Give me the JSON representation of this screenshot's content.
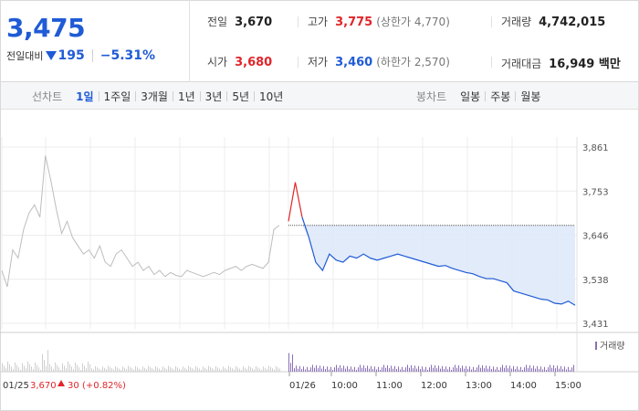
{
  "summary": {
    "price": "3,475",
    "change_label": "전일대비",
    "change_value": "195",
    "change_percent": "−5.31%",
    "direction_color": "#1f5bd6",
    "stats": {
      "prev_close": {
        "label": "전일",
        "value": "3,670"
      },
      "high": {
        "label": "고가",
        "value": "3,775",
        "note": "(상한가 4,770)"
      },
      "volume": {
        "label": "거래량",
        "value": "4,742,015"
      },
      "open": {
        "label": "시가",
        "value": "3,680"
      },
      "low": {
        "label": "저가",
        "value": "3,460",
        "note": "(하한가 2,570)"
      },
      "trade_value": {
        "label": "거래대금",
        "value": "16,949 백만"
      }
    }
  },
  "toolbar": {
    "line_title": "선차트",
    "line_periods": [
      "1일",
      "1주일",
      "3개월",
      "1년",
      "3년",
      "5년",
      "10년"
    ],
    "active_period": "1일",
    "candle_title": "봉차트",
    "candle_periods": [
      "일봉",
      "주봉",
      "월봉"
    ]
  },
  "colors": {
    "up": "#e0262a",
    "down": "#1f5bd6",
    "grey": "#bdbdbd",
    "fill": "#dfe9f8",
    "volume": "#8a6fb6"
  },
  "chart_data": {
    "type": "line",
    "y_ticks": [
      "3,861",
      "3,753",
      "3,646",
      "3,538",
      "3,431"
    ],
    "ylim": [
      3431,
      3861
    ],
    "prev_close": 3670,
    "x_ticks": [
      "01/25",
      "01/26",
      "10:00",
      "11:00",
      "12:00",
      "13:00",
      "14:00",
      "15:00"
    ],
    "volume_label": "거래량",
    "prev_day_caption": {
      "date": "01/25",
      "close": "3,670",
      "change": "30",
      "pct": "(+0.82%)"
    },
    "prev_day_series": [
      3560,
      3520,
      3610,
      3590,
      3660,
      3700,
      3720,
      3690,
      3840,
      3780,
      3710,
      3650,
      3680,
      3640,
      3620,
      3600,
      3610,
      3590,
      3620,
      3580,
      3570,
      3600,
      3610,
      3590,
      3570,
      3580,
      3560,
      3570,
      3550,
      3560,
      3545,
      3555,
      3548,
      3545,
      3560,
      3555,
      3550,
      3545,
      3550,
      3555,
      3550,
      3560,
      3565,
      3570,
      3560,
      3570,
      3575,
      3570,
      3565,
      3580,
      3660,
      3670
    ],
    "today_series": [
      3680,
      3775,
      3690,
      3640,
      3580,
      3560,
      3600,
      3585,
      3580,
      3595,
      3590,
      3600,
      3590,
      3585,
      3590,
      3595,
      3600,
      3595,
      3590,
      3585,
      3580,
      3575,
      3570,
      3572,
      3565,
      3560,
      3555,
      3552,
      3545,
      3540,
      3540,
      3535,
      3530,
      3510,
      3505,
      3500,
      3495,
      3490,
      3488,
      3480,
      3478,
      3485,
      3475
    ]
  }
}
